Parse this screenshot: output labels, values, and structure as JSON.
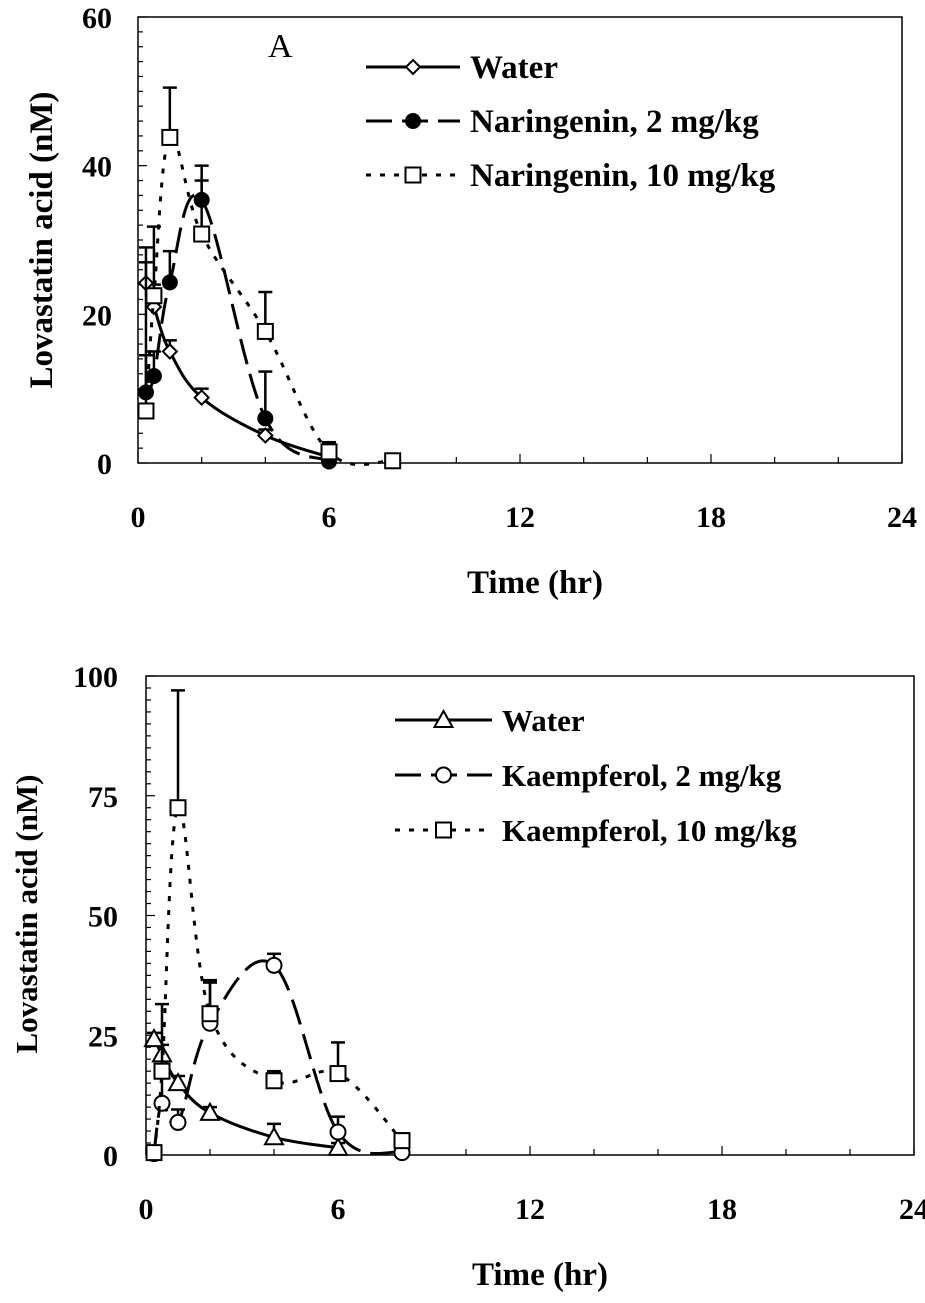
{
  "chart_data": [
    {
      "type": "line",
      "panel_label": "A",
      "xlabel": "Time (hr)",
      "ylabel": "Lovastatin acid (nM)",
      "xlim": [
        0,
        24
      ],
      "ylim": [
        0,
        60
      ],
      "x_ticks": [
        0,
        6,
        12,
        18,
        24
      ],
      "y_ticks": [
        0,
        20,
        40,
        60
      ],
      "x_tick_labels": [
        "0",
        "6",
        "12",
        "18",
        "24"
      ],
      "y_tick_labels": [
        "0",
        "20",
        "40",
        "60"
      ],
      "grid": false,
      "legend_position": "top-right",
      "series": [
        {
          "name": "Water",
          "line_style": "solid",
          "marker": "diamond-open",
          "x": [
            0.25,
            0.5,
            1,
            2,
            4,
            6
          ],
          "y": [
            24.2,
            21,
            15,
            8.8,
            3.7,
            0.8
          ],
          "error_upper": [
            27,
            24,
            16.5,
            10,
            4.5,
            2.5
          ]
        },
        {
          "name": "Naringenin, 2 mg/kg",
          "line_style": "long-dash",
          "marker": "circle-filled",
          "x": [
            0.25,
            0.5,
            1,
            2,
            4,
            6
          ],
          "y": [
            9.5,
            11.7,
            24.3,
            35.4,
            6,
            0.2
          ],
          "error_upper": [
            14.5,
            15,
            28.5,
            40,
            12.3,
            2.8
          ]
        },
        {
          "name": "Naringenin, 10 mg/kg",
          "line_style": "dotted",
          "marker": "square-open",
          "x": [
            0.25,
            0.5,
            1,
            2,
            4,
            6,
            8
          ],
          "y": [
            7,
            22.5,
            43.8,
            30.8,
            17.7,
            1.5,
            0.3
          ],
          "error_upper": [
            29,
            31.8,
            50.5,
            38,
            23,
            2.5,
            1
          ]
        }
      ]
    },
    {
      "type": "line",
      "xlabel": "Time (hr)",
      "ylabel": "Lovastatin acid (nM)",
      "xlim": [
        0,
        24
      ],
      "ylim": [
        0,
        100
      ],
      "x_ticks": [
        0,
        6,
        12,
        18,
        24
      ],
      "y_ticks": [
        0,
        25,
        50,
        75,
        100
      ],
      "x_tick_labels": [
        "0",
        "6",
        "12",
        "18",
        "24"
      ],
      "y_tick_labels": [
        "0",
        "25",
        "50",
        "75",
        "100"
      ],
      "grid": false,
      "legend_position": "top-right",
      "series": [
        {
          "name": "Water",
          "line_style": "solid",
          "marker": "triangle-open",
          "x": [
            0.25,
            0.5,
            1,
            2,
            4,
            6
          ],
          "y": [
            24.2,
            21,
            15,
            8.8,
            3.7,
            1.5
          ],
          "error_upper": [
            25.5,
            23,
            16.5,
            10,
            6.5,
            2.5
          ]
        },
        {
          "name": "Kaempferol, 2 mg/kg",
          "line_style": "long-dash",
          "marker": "circle-open",
          "x": [
            0.25,
            0.5,
            1,
            2,
            4,
            6,
            8
          ],
          "y": [
            0.3,
            10.8,
            6.8,
            27.5,
            39.6,
            4.8,
            0.5
          ],
          "error_upper": [
            1,
            16,
            9.5,
            36,
            42,
            8,
            1.5
          ]
        },
        {
          "name": "Kaempferol, 10 mg/kg",
          "line_style": "dotted",
          "marker": "square-open",
          "x": [
            0.25,
            0.5,
            1,
            2,
            4,
            6,
            8
          ],
          "y": [
            0.5,
            17.5,
            72.5,
            29.5,
            15.5,
            17,
            3
          ],
          "error_upper": [
            1,
            31.5,
            97,
            36.5,
            17.5,
            23.5,
            4.5
          ]
        }
      ]
    }
  ]
}
